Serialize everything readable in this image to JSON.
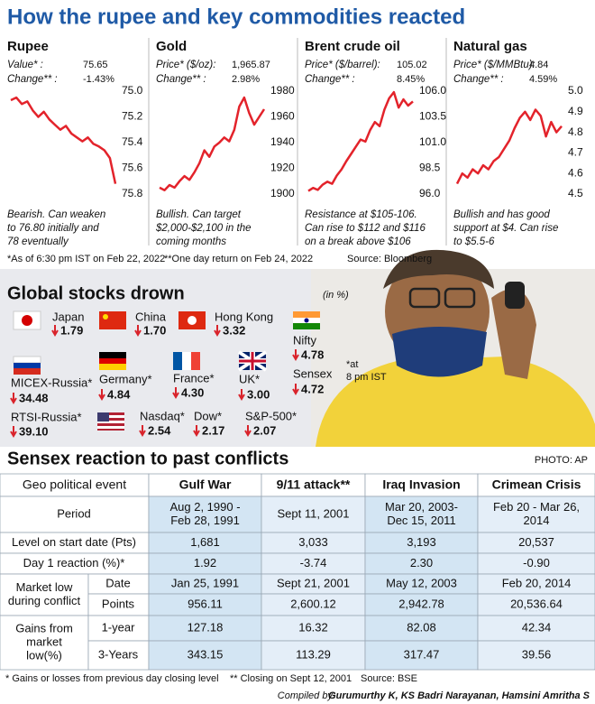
{
  "header": {
    "title": "How the rupee and key commodities reacted"
  },
  "chart_data": [
    {
      "type": "line",
      "title": "Rupee",
      "info": [
        {
          "label": "Value*      :",
          "value": "75.65"
        },
        {
          "label": "Change**   :",
          "value": "-1.43%"
        }
      ],
      "caption": [
        "Bearish. Can weaken",
        "to 76.80 initially and",
        "78 eventually"
      ],
      "values": [
        75.07,
        75.05,
        75.1,
        75.08,
        75.15,
        75.2,
        75.16,
        75.22,
        75.26,
        75.3,
        75.27,
        75.33,
        75.36,
        75.39,
        75.36,
        75.41,
        75.43,
        75.46,
        75.52,
        75.72
      ],
      "color": "#e3232b",
      "ylim": [
        75.8,
        75.0
      ],
      "yticks": [
        {
          "value": 75.0,
          "label": "75.0"
        },
        75.2,
        75.4,
        75.6,
        75.8
      ]
    },
    {
      "type": "line",
      "title": "Gold",
      "info": [
        {
          "label": "Price* ($/oz):",
          "value": "1,965.87"
        },
        {
          "label": "Change**    :",
          "value": "2.98%"
        }
      ],
      "caption": [
        "Bullish. Can target",
        "$2,000-$2,100 in the",
        "coming months"
      ],
      "values": [
        1905,
        1903,
        1907,
        1905,
        1910,
        1914,
        1911,
        1917,
        1924,
        1934,
        1929,
        1937,
        1940,
        1944,
        1941,
        1950,
        1968,
        1975,
        1963,
        1954,
        1960,
        1966
      ],
      "color": "#e3232b",
      "ylim": [
        1900,
        1980
      ],
      "yticks": [
        1900,
        1920,
        1940,
        1960,
        1980
      ]
    },
    {
      "type": "line",
      "title": "Brent crude oil",
      "info": [
        {
          "label": "Price* ($/barrel):",
          "value": "105.02"
        },
        {
          "label": "Change**      :",
          "value": "8.45%"
        }
      ],
      "caption": [
        "Resistance at $105-106.",
        "Can rise to $112 and $116",
        "on a break above $106"
      ],
      "values": [
        96.3,
        96.6,
        96.4,
        96.9,
        97.2,
        97.0,
        97.8,
        98.4,
        99.2,
        99.9,
        100.6,
        101.3,
        101.1,
        102.2,
        103.0,
        102.6,
        104.2,
        105.3,
        105.9,
        104.4,
        105.2,
        104.6,
        105.0
      ],
      "color": "#e3232b",
      "ylim": [
        96.0,
        106.0
      ],
      "yticks": [
        {
          "value": 96.0,
          "label": "96.0"
        },
        98.5,
        {
          "value": 101.0,
          "label": "101.0"
        },
        103.5,
        {
          "value": 106.0,
          "label": "106.0"
        }
      ]
    },
    {
      "type": "line",
      "title": "Natural gas",
      "info": [
        {
          "label": "Price* ($/MMBtu):",
          "value": "4.84"
        },
        {
          "label": "Change**     :",
          "value": "4.59%"
        }
      ],
      "caption": [
        "Bullish and has good",
        "support at $4. Can rise",
        "to $5.5-6"
      ],
      "values": [
        4.55,
        4.6,
        4.58,
        4.62,
        4.6,
        4.64,
        4.62,
        4.66,
        4.68,
        4.72,
        4.76,
        4.82,
        4.87,
        4.9,
        4.86,
        4.91,
        4.88,
        4.78,
        4.85,
        4.8,
        4.83
      ],
      "color": "#e3232b",
      "ylim": [
        4.5,
        5.0
      ],
      "yticks": [
        {
          "value": 5.0,
          "label": "5.0"
        },
        4.9,
        4.8,
        4.7,
        4.6,
        4.5
      ]
    }
  ],
  "chart_notes": [
    "*As of 6:30 pm IST on Feb 22, 2022",
    "**One day return on Feb 24, 2022",
    "Source: Bloomberg"
  ],
  "stocks": {
    "title": "Global stocks drown",
    "unit": "(in %)",
    "note": [
      "*at",
      "8 pm IST"
    ],
    "items": [
      {
        "name": "Japan",
        "value": "1.79"
      },
      {
        "name": "China",
        "value": "1.70"
      },
      {
        "name": "Hong Kong",
        "value": "3.32"
      },
      {
        "name": "Nifty",
        "value": "4.78"
      },
      {
        "name": "MICEX-Russia*",
        "value": "34.48"
      },
      {
        "name": "Germany*",
        "value": "4.84"
      },
      {
        "name": "France*",
        "value": "4.30"
      },
      {
        "name": "UK*",
        "value": "3.00"
      },
      {
        "name": "Sensex",
        "value": "4.72"
      },
      {
        "name": "RTSI-Russia*",
        "value": "39.10"
      },
      {
        "name": "Nasdaq*",
        "value": "2.54"
      },
      {
        "name": "Dow*",
        "value": "2.17"
      },
      {
        "name": "S&P-500*",
        "value": "2.07"
      }
    ]
  },
  "photo_credit": "PHOTO: AP",
  "table": {
    "title": "Sensex reaction to past conflicts",
    "header": [
      "Geo political event",
      "Gulf War",
      "9/11 attack**",
      "Iraq Invasion",
      "Crimean Crisis"
    ],
    "rows": [
      {
        "label": "Period",
        "cells": [
          [
            "Aug 2, 1990 -",
            "Feb 28, 1991"
          ],
          [
            "Sept 11, 2001"
          ],
          [
            "Mar 20, 2003-",
            "Dec 15, 2011"
          ],
          [
            "Feb 20 - Mar 26,",
            "2014"
          ]
        ]
      },
      {
        "label": "Level on start date (Pts)",
        "cells": [
          [
            "1,681"
          ],
          [
            "3,033"
          ],
          [
            "3,193"
          ],
          [
            "20,537"
          ]
        ]
      },
      {
        "label": "Day 1 reaction (%)*",
        "cells": [
          [
            "1.92"
          ],
          [
            "-3.74"
          ],
          [
            "2.30"
          ],
          [
            "-0.90"
          ]
        ]
      },
      {
        "group": [
          "Market low",
          "during conflict"
        ],
        "label": "Date",
        "cells": [
          [
            "Jan 25, 1991"
          ],
          [
            "Sept 21, 2001"
          ],
          [
            "May 12, 2003"
          ],
          [
            "Feb 20, 2014"
          ]
        ]
      },
      {
        "label": "Points",
        "cells": [
          [
            "956.11"
          ],
          [
            "2,600.12"
          ],
          [
            "2,942.78"
          ],
          [
            "20,536.64"
          ]
        ]
      },
      {
        "group": [
          "Gains from",
          "market",
          "low(%)"
        ],
        "label": "1-year",
        "cells": [
          [
            "127.18"
          ],
          [
            "16.32"
          ],
          [
            "82.08"
          ],
          [
            "42.34"
          ]
        ]
      },
      {
        "label": "3-Years",
        "cells": [
          [
            "343.15"
          ],
          [
            "113.29"
          ],
          [
            "317.47"
          ],
          [
            "39.56"
          ]
        ]
      }
    ]
  },
  "footer": {
    "notes": [
      "* Gains or losses from previous day closing level",
      "** Closing on Sept 12, 2001",
      "Source: BSE"
    ],
    "credit_label": "Compiled by:",
    "credit": "Gurumurthy K, KS Badri Narayanan, Hamsini Amritha S"
  }
}
